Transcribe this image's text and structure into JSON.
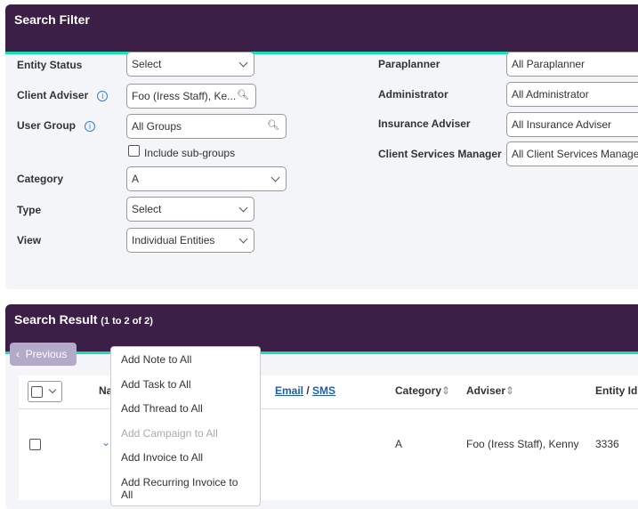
{
  "filter": {
    "title": "Search Filter",
    "entity_status": {
      "label": "Entity Status",
      "value": "Select"
    },
    "client_adviser": {
      "label": "Client Adviser",
      "value": "Foo (Iress Staff), Ke..."
    },
    "user_group": {
      "label": "User Group",
      "value": "All Groups"
    },
    "include_subgroups": "Include sub-groups",
    "category": {
      "label": "Category",
      "value": "A"
    },
    "type": {
      "label": "Type",
      "value": "Select"
    },
    "view": {
      "label": "View",
      "value": "Individual Entities"
    },
    "paraplanner": {
      "label": "Paraplanner",
      "value": "All Paraplanner"
    },
    "administrator": {
      "label": "Administrator",
      "value": "All Administrator"
    },
    "insurance_adviser": {
      "label": "Insurance Adviser",
      "value": "All Insurance Adviser"
    },
    "csm": {
      "label": "Client Services Manager",
      "value": "All Client Services Manage"
    }
  },
  "result": {
    "title": "Search Result",
    "count": "(1 to 2 of 2)",
    "previous": "Previous",
    "columns": {
      "name": "Na",
      "email": "Email",
      "sep": " / ",
      "sms": "SMS",
      "category": "Category",
      "adviser": "Adviser",
      "entity_id": "Entity Id"
    },
    "rows": [
      {
        "category": "A",
        "adviser": "Foo (Iress Staff), Kenny",
        "entity_id": "3336"
      }
    ]
  },
  "menu": [
    "Add Note to All",
    "Add Task to All",
    "Add Thread to All",
    "Add Campaign to All",
    "Add Invoice to All",
    "Add Recurring Invoice to All"
  ],
  "colors": {
    "header": "#3c1f46",
    "accent": "#18e0b0"
  }
}
